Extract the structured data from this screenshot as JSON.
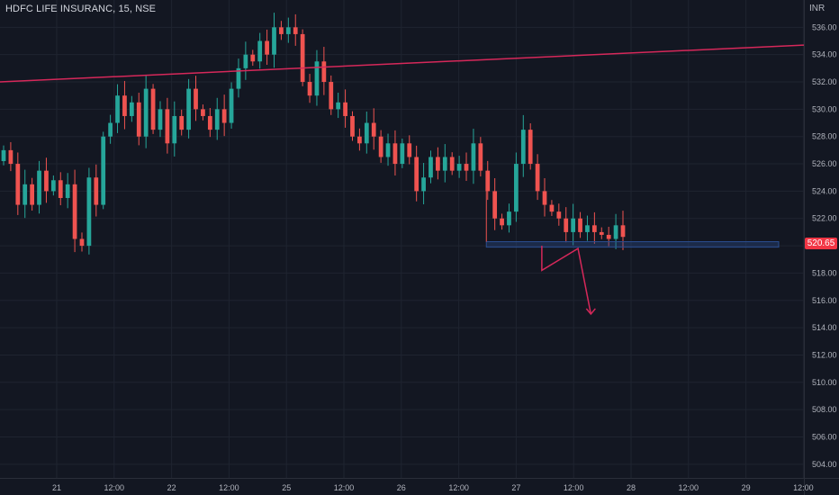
{
  "header": {
    "title": "HDFC LIFE INSURANC, 15, NSE",
    "currency": "INR",
    "last_price": "520.65"
  },
  "colors": {
    "background": "#131722",
    "grid": "#1f2430",
    "up": "#26a69a",
    "down": "#ef5350",
    "trendline": "#d6285a",
    "zone": "#2a4d8f",
    "axis_text": "#b2b5be"
  },
  "chart_data": {
    "type": "candlestick",
    "ylim": [
      503,
      538
    ],
    "y_ticks": [
      "504.00",
      "506.00",
      "508.00",
      "510.00",
      "512.00",
      "514.00",
      "516.00",
      "518.00",
      "520.00",
      "522.00",
      "524.00",
      "526.00",
      "528.00",
      "530.00",
      "532.00",
      "534.00",
      "536.00"
    ],
    "x_ticks": [
      "21",
      "12:00",
      "22",
      "12:00",
      "25",
      "12:00",
      "26",
      "12:00",
      "27",
      "12:00",
      "28",
      "12:00",
      "29",
      "12:00"
    ],
    "close_path": [
      527.0,
      526.0,
      523.0,
      524.5,
      523.0,
      525.5,
      524.0,
      524.8,
      523.5,
      524.5,
      520.5,
      520.0,
      525.0,
      523.0,
      528.0,
      529.0,
      531.0,
      529.5,
      530.5,
      528.0,
      531.5,
      528.5,
      530.0,
      527.5,
      529.5,
      528.5,
      531.5,
      530.0,
      529.5,
      528.5,
      530.0,
      529.0,
      531.5,
      533.0,
      534.0,
      533.5,
      535.0,
      534.0,
      536.0,
      535.5,
      536.0,
      535.5,
      532.0,
      531.0,
      533.5,
      532.0,
      530.0,
      530.5,
      529.5,
      528.0,
      527.5,
      529.0,
      528.0,
      526.5,
      527.5,
      526.0,
      527.5,
      526.5,
      524.0,
      525.0,
      526.5,
      525.5,
      526.5,
      525.5,
      526.0,
      525.5,
      527.5,
      525.5,
      524.0,
      522.0,
      521.5,
      522.5,
      526.0,
      528.5,
      526.0,
      524.0,
      523.0,
      522.5,
      522.0,
      521.0,
      522.0,
      521.0,
      521.5,
      521.0,
      520.8,
      520.5,
      521.5,
      520.65
    ],
    "trendline": {
      "from": [
        0,
        532.0
      ],
      "to": [
        100,
        534.7
      ]
    },
    "support_zone": {
      "from_x": 60.5,
      "to_x": 100,
      "top": 520.3,
      "bottom": 519.9
    },
    "projection": [
      [
        67.4,
        520.0
      ],
      [
        67.4,
        518.2
      ],
      [
        71.9,
        519.8
      ],
      [
        73.5,
        515.0
      ]
    ]
  }
}
